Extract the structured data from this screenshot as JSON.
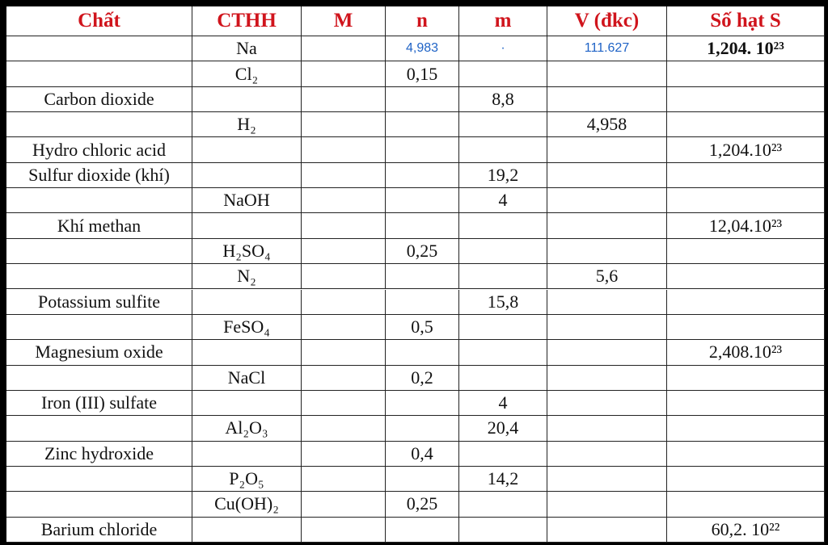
{
  "table": {
    "header": [
      "Chất",
      "CTHH",
      "M",
      "n",
      "m",
      "V (đkc)",
      "Số hạt S"
    ],
    "rows": [
      [
        null,
        "Na",
        null,
        "4,983",
        "·",
        "111.627",
        "1,204. 10²³"
      ],
      [
        null,
        "Cl₂",
        null,
        "0,15",
        null,
        null,
        null
      ],
      [
        "Carbon dioxide",
        null,
        null,
        null,
        "8,8",
        null,
        null
      ],
      [
        null,
        "H₂",
        null,
        null,
        null,
        "4,958",
        null
      ],
      [
        "Hydro chloric acid",
        null,
        null,
        null,
        null,
        null,
        "1,204.10²³"
      ],
      [
        "Sulfur dioxide (khí)",
        null,
        null,
        null,
        "19,2",
        null,
        null
      ],
      [
        null,
        "NaOH",
        null,
        null,
        "4",
        null,
        null
      ],
      [
        "Khí methan",
        null,
        null,
        null,
        null,
        null,
        "12,04.10²³"
      ],
      [
        null,
        "H₂SO₄",
        null,
        "0,25",
        null,
        null,
        null
      ],
      [
        null,
        "N₂",
        null,
        null,
        null,
        "5,6",
        null
      ],
      [
        "Potassium sulfite",
        null,
        null,
        null,
        "15,8",
        null,
        null
      ],
      [
        null,
        "FeSO₄",
        null,
        "0,5",
        null,
        null,
        null
      ],
      [
        "Magnesium oxide",
        null,
        null,
        null,
        null,
        null,
        "2,408.10²³"
      ],
      [
        null,
        "NaCl",
        null,
        "0,2",
        null,
        null,
        null
      ],
      [
        "Iron (III) sulfate",
        null,
        null,
        null,
        "4",
        null,
        null
      ],
      [
        null,
        "Al₂O₃",
        null,
        null,
        "20,4",
        null,
        null
      ],
      [
        "Zinc hydroxide",
        null,
        null,
        "0,4",
        null,
        null,
        null
      ],
      [
        null,
        "P₂O₅",
        null,
        null,
        "14,2",
        null,
        null
      ],
      [
        null,
        "Cu(OH)₂",
        null,
        "0,25",
        null,
        null,
        null
      ],
      [
        "Barium chloride",
        null,
        null,
        null,
        null,
        null,
        "60,2. 10²²"
      ]
    ]
  }
}
